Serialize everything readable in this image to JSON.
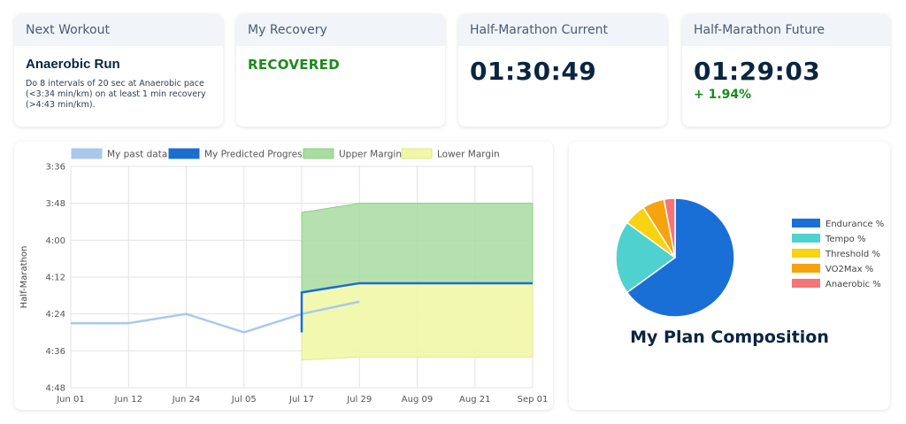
{
  "cards": {
    "next_workout": {
      "header": "Next Workout",
      "title": "Anaerobic Run",
      "description": "Do 8 intervals of 20 sec at Anaerobic pace (<3:34 min/km) on at least 1 min recovery (>4:43 min/km)."
    },
    "recovery": {
      "header": "My Recovery",
      "status": "RECOVERED"
    },
    "hm_current": {
      "header": "Half-Marathon Current",
      "time": "01:30:49"
    },
    "hm_future": {
      "header": "Half-Marathon Future",
      "time": "01:29:03",
      "delta": "+ 1.94%"
    }
  },
  "chart_data": [
    {
      "type": "line",
      "ylabel": "Half-Marathon",
      "xlabel": "",
      "y_ticks": [
        "3:36",
        "3:48",
        "4:00",
        "4:12",
        "4:24",
        "4:36",
        "4:48"
      ],
      "ylim_seconds": [
        216,
        288
      ],
      "y_reversed": true,
      "x_ticks": [
        "Jun 01",
        "Jun 12",
        "Jun 24",
        "Jul 05",
        "Jul 17",
        "Jul 29",
        "Aug 09",
        "Aug 21",
        "Sep 01"
      ],
      "legend_position": "top",
      "series": [
        {
          "name": "My past data",
          "color": "#a9c9ec",
          "x": [
            "Jun 01",
            "Jun 12",
            "Jun 24",
            "Jul 05",
            "Jul 17",
            "Jul 29"
          ],
          "y": [
            "4:27",
            "4:27",
            "4:24",
            "4:30",
            "4:24",
            "4:20"
          ]
        },
        {
          "name": "My Predicted Progress",
          "color": "#1a6fce",
          "x": [
            "Jul 17",
            "Jul 17",
            "Jul 29",
            "Aug 09",
            "Aug 21",
            "Sep 01"
          ],
          "y": [
            "4:30",
            "4:17",
            "4:14",
            "4:14",
            "4:14",
            "4:14"
          ]
        },
        {
          "name": "Upper Margin",
          "color": "#a8dca0",
          "x": [
            "Jul 17",
            "Jul 17",
            "Jul 29",
            "Aug 09",
            "Aug 21",
            "Sep 01"
          ],
          "y": [
            "4:30",
            "3:51",
            "3:48",
            "3:48",
            "3:48",
            "3:48"
          ]
        },
        {
          "name": "Lower Margin",
          "color": "#f2f7a8",
          "x": [
            "Jul 17",
            "Jul 17",
            "Jul 29",
            "Aug 09",
            "Aug 21",
            "Sep 01"
          ],
          "y": [
            "4:30",
            "4:39",
            "4:38",
            "4:38",
            "4:38",
            "4:38"
          ]
        }
      ],
      "grid": true
    },
    {
      "type": "pie",
      "title": "My Plan Composition",
      "legend_position": "right",
      "series": [
        {
          "name": "Endurance %",
          "value": 65,
          "color": "#1a6fd6"
        },
        {
          "name": "Tempo %",
          "value": 20,
          "color": "#4fd1cf"
        },
        {
          "name": "Threshold %",
          "value": 6,
          "color": "#f7d311"
        },
        {
          "name": "VO2Max %",
          "value": 6,
          "color": "#f5a40f"
        },
        {
          "name": "Anaerobic %",
          "value": 3,
          "color": "#f47478"
        }
      ]
    }
  ]
}
